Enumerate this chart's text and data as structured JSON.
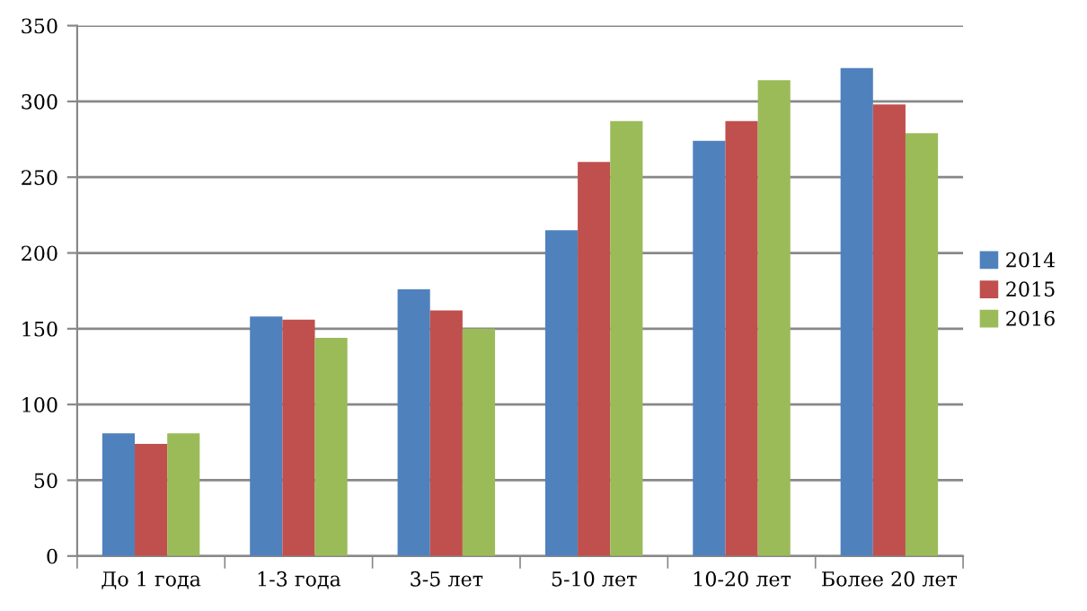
{
  "chart_data": {
    "type": "bar",
    "categories": [
      "До 1 года",
      "1-3 года",
      "3-5 лет",
      "5-10 лет",
      "10-20 лет",
      "Более 20 лет"
    ],
    "series": [
      {
        "name": "2014",
        "color": "#4f81bd",
        "values": [
          81,
          158,
          176,
          215,
          274,
          322
        ]
      },
      {
        "name": "2015",
        "color": "#c0504d",
        "values": [
          74,
          156,
          162,
          260,
          287,
          298
        ]
      },
      {
        "name": "2016",
        "color": "#9bbb59",
        "values": [
          81,
          144,
          150,
          287,
          314,
          279
        ]
      }
    ],
    "ylim": [
      0,
      350
    ],
    "yticks": [
      0,
      50,
      100,
      150,
      200,
      250,
      300,
      350
    ],
    "grid": "y",
    "legend": "right"
  }
}
